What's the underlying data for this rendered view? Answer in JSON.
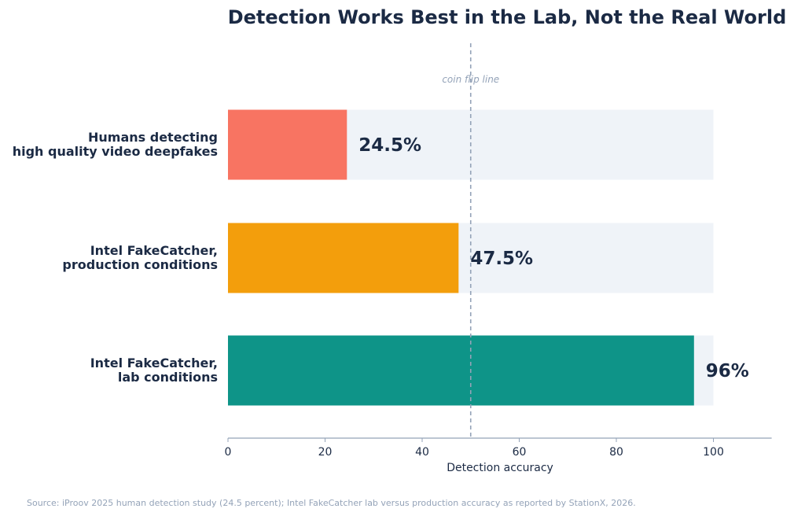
{
  "chart_data": {
    "type": "bar",
    "orientation": "horizontal",
    "title": "Detection Works Best in the Lab, Not the Real World",
    "xlabel": "Detection accuracy",
    "ylabel": "",
    "xlim": [
      0,
      112
    ],
    "xticks": [
      0,
      20,
      40,
      60,
      80,
      100
    ],
    "background_max": 100,
    "grid": false,
    "categories": [
      [
        "Humans detecting",
        "high quality video deepfakes"
      ],
      [
        "Intel FakeCatcher,",
        "production conditions"
      ],
      [
        "Intel FakeCatcher,",
        "lab conditions"
      ]
    ],
    "values": [
      24.5,
      47.5,
      96
    ],
    "value_labels": [
      "24.5%",
      "47.5%",
      "96%"
    ],
    "colors": [
      "#f87462",
      "#f39e0c",
      "#0e9488"
    ],
    "track_color": "#eff3f8",
    "reference_line": {
      "value": 50,
      "label": "coin flip line",
      "color": "#94a3b8"
    }
  },
  "source": "Source: iProov 2025 human detection study (24.5 percent); Intel FakeCatcher lab versus production accuracy as reported by StationX, 2026."
}
